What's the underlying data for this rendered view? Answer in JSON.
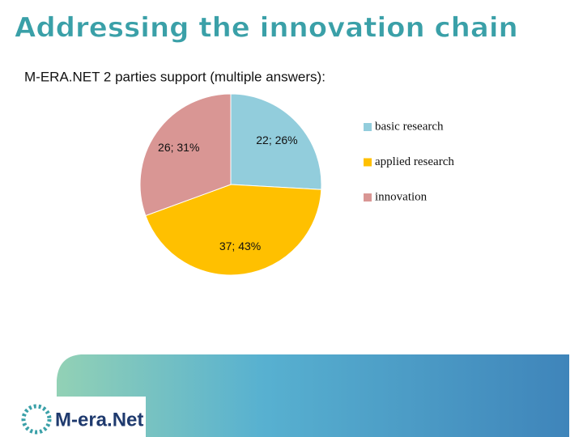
{
  "title": "Addressing the innovation chain",
  "logo": "M-era.Net",
  "chart_data": {
    "type": "pie",
    "title": "M-ERA.NET 2 parties support (multiple answers):",
    "categories": [
      "basic research",
      "applied research",
      "innovation"
    ],
    "values": [
      22,
      37,
      26
    ],
    "value_labels": [
      "22; 26%",
      "37; 43%",
      "26; 31%"
    ],
    "colors": [
      "#92cddc",
      "#ffc000",
      "#d99694"
    ],
    "legend": "right"
  }
}
